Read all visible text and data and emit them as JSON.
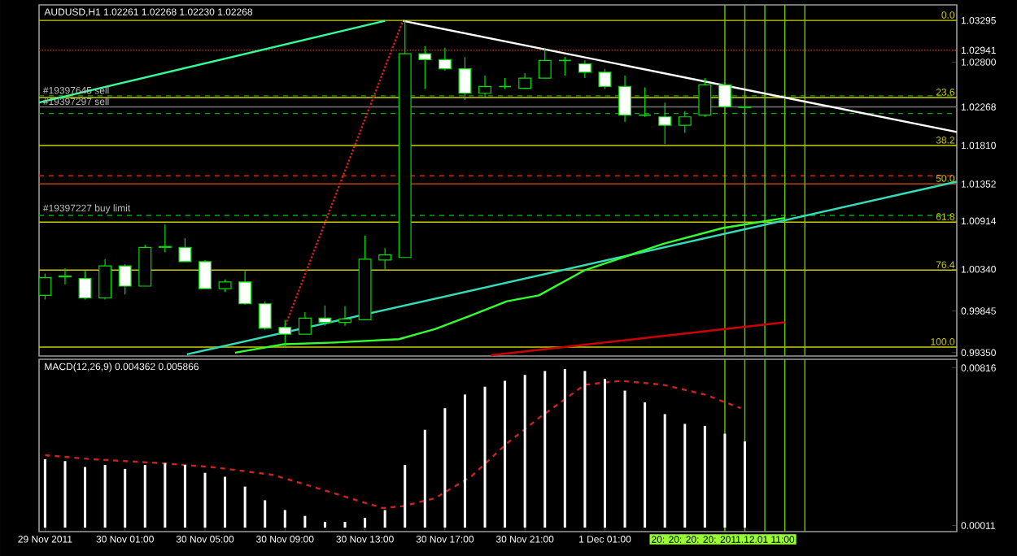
{
  "chart_data": [
    {
      "type": "candlestick",
      "title": "AUDUSD,H1 1.02261 1.02268 1.02230 1.02268",
      "x": [
        "2011-11-29T21:00",
        "2011-11-29T22:00",
        "2011-11-29T23:00",
        "2011-11-30T00:00",
        "2011-11-30T01:00",
        "2011-11-30T02:00",
        "2011-11-30T03:00",
        "2011-11-30T04:00",
        "2011-11-30T05:00",
        "2011-11-30T06:00",
        "2011-11-30T07:00",
        "2011-11-30T08:00",
        "2011-11-30T09:00",
        "2011-11-30T10:00",
        "2011-11-30T11:00",
        "2011-11-30T12:00",
        "2011-11-30T13:00",
        "2011-11-30T14:00",
        "2011-11-30T15:00",
        "2011-11-30T16:00",
        "2011-11-30T17:00",
        "2011-11-30T18:00",
        "2011-11-30T19:00",
        "2011-11-30T20:00",
        "2011-11-30T21:00",
        "2011-11-30T22:00",
        "2011-11-30T23:00",
        "2011-12-01T00:00",
        "2011-12-01T01:00",
        "2011-12-01T02:00",
        "2011-12-01T03:00",
        "2011-12-01T04:00",
        "2011-12-01T05:00",
        "2011-12-01T06:00",
        "2011-12-01T07:00",
        "2011-12-01T08:00"
      ],
      "ohlc": [
        [
          1.0003,
          1.0029,
          0.9998,
          1.0024
        ],
        [
          1.0025,
          1.0035,
          1.0016,
          1.0026
        ],
        [
          1.0023,
          1.0032,
          0.9998,
          1.0
        ],
        [
          1.0,
          1.0046,
          0.9998,
          1.0038
        ],
        [
          1.0038,
          1.004,
          1.0004,
          1.0014
        ],
        [
          1.0014,
          1.0063,
          1.0014,
          1.006
        ],
        [
          1.006,
          1.0087,
          1.0054,
          1.0061
        ],
        [
          1.006,
          1.0071,
          1.0043,
          1.0043
        ],
        [
          1.0043,
          1.0045,
          1.0011,
          1.0011
        ],
        [
          1.0011,
          1.0022,
          1.0007,
          1.0019
        ],
        [
          1.0019,
          1.0032,
          0.9992,
          0.9993
        ],
        [
          0.9993,
          0.9996,
          0.9962,
          0.9964
        ],
        [
          0.9965,
          0.9974,
          0.9942,
          0.9957
        ],
        [
          0.9957,
          0.9983,
          0.9957,
          0.9976
        ],
        [
          0.9976,
          0.9991,
          0.9967,
          0.9971
        ],
        [
          0.9971,
          0.999,
          0.9967,
          0.9975
        ],
        [
          0.9974,
          1.0074,
          0.9974,
          1.0046
        ],
        [
          1.0045,
          1.0059,
          1.0034,
          1.0051
        ],
        [
          1.0048,
          1.03295,
          1.0048,
          1.029
        ],
        [
          1.029,
          1.0299,
          1.0248,
          1.0283
        ],
        [
          1.0283,
          1.0297,
          1.027,
          1.0272
        ],
        [
          1.0272,
          1.0286,
          1.0235,
          1.0243
        ],
        [
          1.0243,
          1.0264,
          1.0238,
          1.0251
        ],
        [
          1.0251,
          1.0261,
          1.0248,
          1.0251
        ],
        [
          1.0249,
          1.0267,
          1.0248,
          1.0261
        ],
        [
          1.0261,
          1.0297,
          1.0261,
          1.0282
        ],
        [
          1.0282,
          1.0286,
          1.0264,
          1.0282
        ],
        [
          1.0278,
          1.0282,
          1.0261,
          1.0268
        ],
        [
          1.0268,
          1.0272,
          1.0248,
          1.0251
        ],
        [
          1.0251,
          1.0264,
          1.0209,
          1.0217
        ],
        [
          1.0217,
          1.025,
          1.0215,
          1.0217
        ],
        [
          1.0215,
          1.0232,
          1.0183,
          1.0205
        ],
        [
          1.0205,
          1.0222,
          1.0196,
          1.0215
        ],
        [
          1.0217,
          1.0261,
          1.0215,
          1.0253
        ],
        [
          1.0253,
          1.0256,
          1.0226,
          1.0227
        ],
        [
          1.02261,
          1.02268,
          1.0223,
          1.02268
        ]
      ],
      "series": [
        {
          "type": "line",
          "color": "#33ff99",
          "x": [
            "2011-11-29T20:42",
            "2011-11-30T14:00"
          ],
          "values": [
            1.0232,
            1.0329
          ]
        },
        {
          "type": "line",
          "color": "#ffffff",
          "x": [
            "2011-11-30T14:54",
            "2011-12-01T18:36"
          ],
          "values": [
            1.0329,
            1.0197
          ]
        },
        {
          "type": "line",
          "color": "#cc2222",
          "line_style": "dotted",
          "x": [
            "2011-11-30T08:54",
            "2011-11-30T14:54"
          ],
          "values": [
            0.996,
            1.0329
          ]
        },
        {
          "type": "line",
          "color": "#33ddbb",
          "x": [
            "2011-11-30T04:06",
            "2011-12-01T18:36"
          ],
          "values": [
            0.9933,
            1.0138
          ]
        },
        {
          "type": "line",
          "color": "#33ff33",
          "x": [
            "2011-11-30T06:30",
            "2011-11-30T08:57",
            "2011-11-30T11:30",
            "2011-11-30T14:42",
            "2011-11-30T16:30",
            "2011-11-30T18:18",
            "2011-11-30T20:06",
            "2011-11-30T21:42",
            "2011-12-01T00:00",
            "2011-12-01T03:54",
            "2011-12-01T06:54",
            "2011-12-01T10:00"
          ],
          "values": [
            0.9935,
            0.9945,
            0.9947,
            0.9951,
            0.9963,
            0.9979,
            0.9996,
            1.0003,
            1.0033,
            1.0064,
            1.0083,
            1.0095
          ]
        },
        {
          "type": "line",
          "color": "#cc0000",
          "x": [
            "2011-11-30T19:18",
            "2011-12-01T10:00"
          ],
          "values": [
            0.9932,
            0.9971
          ]
        }
      ],
      "ref_lines": [
        {
          "axis": "y",
          "value": 1.03295,
          "color": "#cccc00"
        },
        {
          "axis": "y",
          "value": 1.02941,
          "color": "#cc3300",
          "line_style": "dotted"
        },
        {
          "axis": "y",
          "value": 1.024,
          "color": "#00aa00",
          "line_style": "dashed"
        },
        {
          "axis": "y",
          "value": 1.0238,
          "color": "#cccc00"
        },
        {
          "axis": "y",
          "value": 1.02268,
          "color": "#777777"
        },
        {
          "axis": "y",
          "value": 1.0219,
          "color": "#00aa00",
          "line_style": "dashed"
        },
        {
          "axis": "y",
          "value": 1.0181,
          "color": "#cccc00"
        },
        {
          "axis": "y",
          "value": 1.0145,
          "color": "#dd2200",
          "line_style": "dashed"
        },
        {
          "axis": "y",
          "value": 1.01355,
          "color": "#e05010"
        },
        {
          "axis": "y",
          "value": 1.0098,
          "color": "#00aa00",
          "line_style": "dashed"
        },
        {
          "axis": "y",
          "value": 1.009,
          "color": "#cccc00"
        },
        {
          "axis": "y",
          "value": 1.0033,
          "color": "#cccc00"
        },
        {
          "axis": "y",
          "value": 0.99416,
          "color": "#cccc00"
        },
        {
          "axis": "x",
          "value": "2011-12-01T07:00",
          "color": "#66cc00"
        },
        {
          "axis": "x",
          "value": "2011-12-01T08:00",
          "color": "#66cc00"
        },
        {
          "axis": "x",
          "value": "2011-12-01T09:00",
          "color": "#66cc00"
        },
        {
          "axis": "x",
          "value": "2011-12-01T10:00",
          "color": "#66cc00"
        },
        {
          "axis": "x",
          "value": "2011-12-01T11:00",
          "color": "#66cc00"
        }
      ],
      "annotations": [
        {
          "text": "#19397645 sell",
          "x": "2011-11-29T20:48",
          "y": 1.024
        },
        {
          "text": "#19397297 sell",
          "x": "2011-11-29T20:48",
          "y": 1.02268
        },
        {
          "text": "#19397227 buy limit",
          "x": "2011-11-29T20:48",
          "y": 1.0098
        },
        {
          "text": "0.0",
          "x": "2011-12-01T18:36",
          "y": 1.03295
        },
        {
          "text": "23.6",
          "x": "2011-12-01T18:36",
          "y": 1.0238
        },
        {
          "text": "38.2",
          "x": "2011-12-01T18:36",
          "y": 1.0181
        },
        {
          "text": "50.0",
          "x": "2011-12-01T18:36",
          "y": 1.01355
        },
        {
          "text": "61.8",
          "x": "2011-12-01T18:36",
          "y": 1.009
        },
        {
          "text": "76.4",
          "x": "2011-12-01T18:36",
          "y": 1.0033
        },
        {
          "text": "100.0",
          "x": "2011-12-01T18:36",
          "y": 0.99416
        }
      ],
      "xlim": [
        "2011-11-29T20:42",
        "2011-12-01T18:36"
      ],
      "ylim": [
        0.9931,
        1.0348
      ],
      "yticks": [
        1.03295,
        1.02941,
        {
          "value": 1.028,
          "label": "1.02800"
        },
        1.02268,
        {
          "value": 1.0181,
          "label": "1.01810"
        },
        1.01352,
        1.00914,
        {
          "value": 1.0034,
          "label": "1.00340"
        },
        0.99845,
        {
          "value": 0.9935,
          "label": "0.99350"
        }
      ],
      "tick_labels": "y"
    },
    {
      "type": "bar",
      "title": "MACD(12,26,9) 0.004362 0.005866",
      "x": [
        "2011-11-29T21:00",
        "2011-11-29T22:00",
        "2011-11-29T23:00",
        "2011-11-30T00:00",
        "2011-11-30T01:00",
        "2011-11-30T02:00",
        "2011-11-30T03:00",
        "2011-11-30T04:00",
        "2011-11-30T05:00",
        "2011-11-30T06:00",
        "2011-11-30T07:00",
        "2011-11-30T08:00",
        "2011-11-30T09:00",
        "2011-11-30T10:00",
        "2011-11-30T11:00",
        "2011-11-30T12:00",
        "2011-11-30T13:00",
        "2011-11-30T14:00",
        "2011-11-30T15:00",
        "2011-11-30T16:00",
        "2011-11-30T17:00",
        "2011-11-30T18:00",
        "2011-11-30T19:00",
        "2011-11-30T20:00",
        "2011-11-30T21:00",
        "2011-11-30T22:00",
        "2011-11-30T23:00",
        "2011-12-01T00:00",
        "2011-12-01T01:00",
        "2011-12-01T02:00",
        "2011-12-01T03:00",
        "2011-12-01T04:00",
        "2011-12-01T05:00",
        "2011-12-01T06:00",
        "2011-12-01T07:00",
        "2011-12-01T08:00"
      ],
      "series": [
        {
          "type": "bar",
          "color": "#ffffff",
          "values": [
            0.0035,
            0.0034,
            0.0031,
            0.0032,
            0.003,
            0.0032,
            0.0033,
            0.0032,
            0.0028,
            0.0026,
            0.0021,
            0.0014,
            0.0009,
            0.0006,
            0.0003,
            0.0003,
            0.0005,
            0.0009,
            0.0032,
            0.005,
            0.0061,
            0.0068,
            0.0072,
            0.0075,
            0.0078,
            0.008,
            0.0081,
            0.008,
            0.0076,
            0.007,
            0.0064,
            0.0058,
            0.0053,
            0.0052,
            0.0048,
            0.0044
          ]
        },
        {
          "type": "line",
          "color": "#cc2222",
          "line_style": "dashed",
          "x": [
            "2011-11-29T21:00",
            "2011-11-29T23:18",
            "2011-11-30T02:42",
            "2011-11-30T05:18",
            "2011-11-30T08:24",
            "2011-11-30T11:00",
            "2011-11-30T12:54",
            "2011-11-30T13:54",
            "2011-11-30T14:54",
            "2011-11-30T16:30",
            "2011-11-30T18:18",
            "2011-11-30T20:06",
            "2011-11-30T21:42",
            "2011-12-01T00:00",
            "2011-12-01T01:48",
            "2011-12-01T03:54",
            "2011-12-01T06:00",
            "2011-12-01T07:48"
          ],
          "values": [
            0.0037,
            0.0035,
            0.0033,
            0.0031,
            0.0027,
            0.0019,
            0.0013,
            0.001,
            0.0011,
            0.0015,
            0.0026,
            0.0043,
            0.0056,
            0.0073,
            0.0075,
            0.0073,
            0.0068,
            0.0061
          ]
        }
      ],
      "ref_lines": [
        {
          "axis": "x",
          "value": "2011-12-01T07:00",
          "color": "#66cc00"
        },
        {
          "axis": "x",
          "value": "2011-12-01T08:00",
          "color": "#66cc00"
        },
        {
          "axis": "x",
          "value": "2011-12-01T09:00",
          "color": "#66cc00"
        },
        {
          "axis": "x",
          "value": "2011-12-01T10:00",
          "color": "#66cc00"
        },
        {
          "axis": "x",
          "value": "2011-12-01T11:00",
          "color": "#66cc00"
        }
      ],
      "annotations": [
        "20: 20: 20: 20: 2011.12.01 11:00"
      ],
      "xlim": [
        "2011-11-29T20:42",
        "2011-12-01T18:36"
      ],
      "ylim": [
        -0.0002,
        0.0086
      ],
      "xticks": [
        {
          "value": "2011-11-29T21:00",
          "label": "29 Nov 2011"
        },
        {
          "value": "2011-11-30T01:00",
          "label": "30 Nov 01:00"
        },
        {
          "value": "2011-11-30T05:00",
          "label": "30 Nov 05:00"
        },
        {
          "value": "2011-11-30T09:00",
          "label": "30 Nov 09:00"
        },
        {
          "value": "2011-11-30T13:00",
          "label": "30 Nov 13:00"
        },
        {
          "value": "2011-11-30T17:00",
          "label": "30 Nov 17:00"
        },
        {
          "value": "2011-11-30T21:00",
          "label": "30 Nov 21:00"
        },
        {
          "value": "2011-12-01T01:00",
          "label": "1 Dec 01:00"
        }
      ],
      "yticks": [
        0.00816,
        0.00011
      ]
    }
  ]
}
